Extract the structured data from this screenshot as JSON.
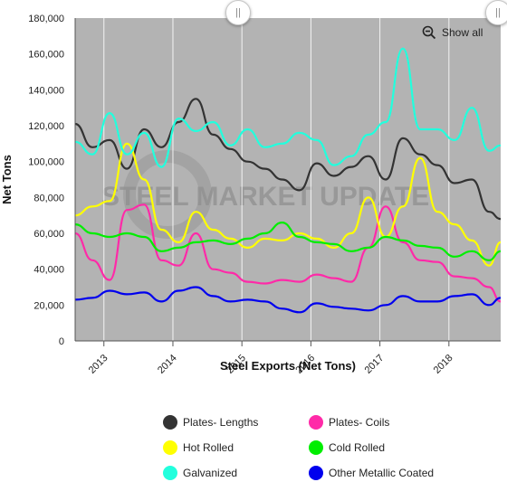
{
  "chart_data": {
    "type": "line",
    "xlabel": "Steel Exports (Net Tons)",
    "ylabel": "Net Tons",
    "ylim": [
      0,
      180000
    ],
    "yticks": [
      "0",
      "20,000",
      "40,000",
      "60,000",
      "80,000",
      "100,000",
      "120,000",
      "140,000",
      "160,000",
      "180,000"
    ],
    "xticks": [
      "2013",
      "2014",
      "2015",
      "2016",
      "2017",
      "2018"
    ],
    "xrange": [
      "2012-08",
      "2018-10"
    ],
    "grid": "vertical",
    "background": "#b3b3b3",
    "watermark": "STEEL MARKET UPDATE",
    "legend_position": "bottom",
    "x": [
      "2012-08",
      "2012-11",
      "2013-02",
      "2013-05",
      "2013-08",
      "2013-11",
      "2014-02",
      "2014-05",
      "2014-08",
      "2014-11",
      "2015-02",
      "2015-05",
      "2015-08",
      "2015-11",
      "2016-02",
      "2016-05",
      "2016-08",
      "2016-11",
      "2017-02",
      "2017-05",
      "2017-08",
      "2017-11",
      "2018-02",
      "2018-05",
      "2018-08",
      "2018-10"
    ],
    "series": [
      {
        "name": "Plates- Lengths",
        "color": "#333333",
        "values": [
          121000,
          108000,
          112000,
          96000,
          118000,
          108000,
          122000,
          135000,
          115000,
          107000,
          100000,
          96000,
          90000,
          84000,
          99000,
          92000,
          97000,
          103000,
          90000,
          113000,
          104000,
          98000,
          88000,
          90000,
          72000,
          68000
        ]
      },
      {
        "name": "Plates- Coils",
        "color": "#ff2aa8",
        "values": [
          60000,
          45000,
          34000,
          73000,
          76000,
          45000,
          42000,
          60000,
          40000,
          38000,
          33000,
          32000,
          34000,
          33000,
          37000,
          35000,
          33000,
          52000,
          75000,
          55000,
          45000,
          44000,
          36000,
          35000,
          30000,
          22000
        ]
      },
      {
        "name": "Hot Rolled",
        "color": "#ffff00",
        "values": [
          70000,
          75000,
          78000,
          110000,
          90000,
          62000,
          55000,
          72000,
          62000,
          57000,
          52000,
          57000,
          56000,
          60000,
          57000,
          52000,
          60000,
          80000,
          58000,
          75000,
          102000,
          72000,
          65000,
          56000,
          42000,
          55000
        ]
      },
      {
        "name": "Cold Rolled",
        "color": "#00ee00",
        "values": [
          65000,
          60000,
          58000,
          60000,
          58000,
          50000,
          52000,
          55000,
          56000,
          54000,
          57000,
          60000,
          66000,
          58000,
          55000,
          54000,
          50000,
          52000,
          58000,
          56000,
          53000,
          52000,
          47000,
          50000,
          45000,
          50000
        ]
      },
      {
        "name": "Galvanized",
        "color": "#22ffdd",
        "values": [
          111000,
          104000,
          127000,
          104000,
          116000,
          97000,
          124000,
          117000,
          122000,
          109000,
          118000,
          108000,
          110000,
          116000,
          112000,
          98000,
          103000,
          115000,
          122000,
          163000,
          118000,
          118000,
          112000,
          130000,
          106000,
          109000
        ]
      },
      {
        "name": "Other Metallic Coated",
        "color": "#0000ee",
        "values": [
          23000,
          24000,
          28000,
          26000,
          27000,
          22000,
          28000,
          30000,
          25000,
          22000,
          23000,
          22000,
          18000,
          16000,
          21000,
          19000,
          18000,
          17000,
          20000,
          25000,
          22000,
          22000,
          25000,
          26000,
          20000,
          24000
        ]
      }
    ]
  },
  "controls": {
    "show_all": "Show all",
    "scroll_handle_glyph": "||"
  }
}
